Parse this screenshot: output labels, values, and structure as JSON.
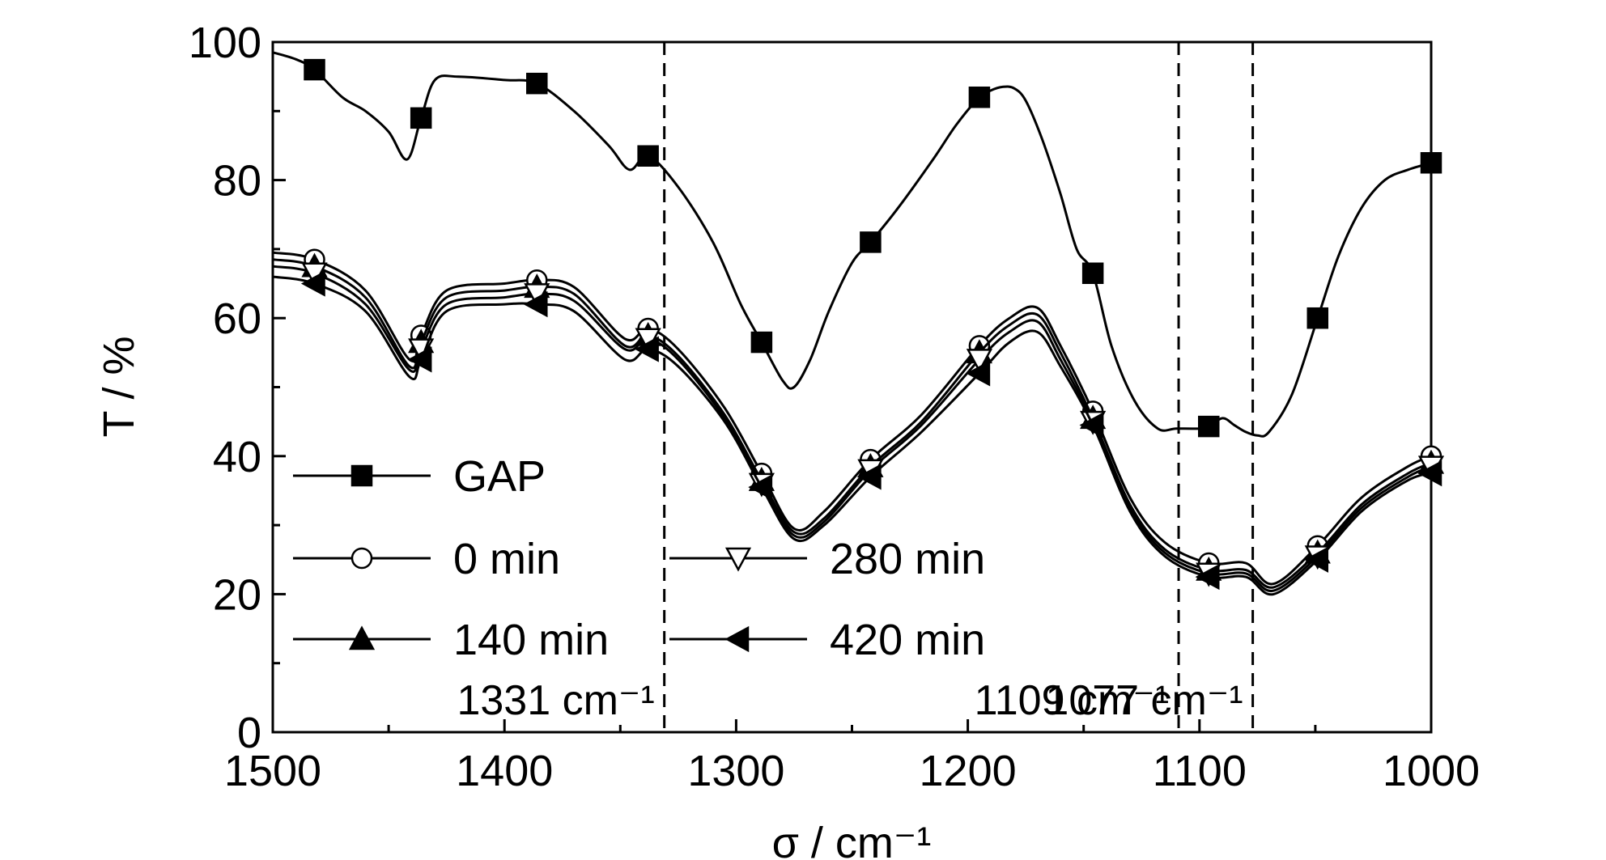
{
  "chart_data": {
    "type": "line",
    "title": "",
    "xlabel": "σ / cm⁻¹",
    "ylabel": "T / %",
    "xlim": [
      1500,
      1000
    ],
    "ylim": [
      0,
      100
    ],
    "x_reversed": true,
    "grid": false,
    "legend_position": "lower-left",
    "xticks": [
      "1500",
      "1400",
      "1300",
      "1200",
      "1100",
      "1000"
    ],
    "yticks": [
      "0",
      "20",
      "40",
      "60",
      "80",
      "100"
    ],
    "annotations": [
      {
        "text": "1331 cm⁻¹",
        "x": 1331
      },
      {
        "text": "1109 cm⁻¹",
        "x": 1109
      },
      {
        "text": "1077 cm⁻¹",
        "x": 1077
      }
    ],
    "series": [
      {
        "name": "GAP",
        "marker": "square-filled",
        "x": [
          1500,
          1490,
          1482,
          1470,
          1460,
          1450,
          1442,
          1436,
          1430,
          1420,
          1400,
          1386,
          1370,
          1355,
          1346,
          1338,
          1325,
          1310,
          1298,
          1289,
          1280,
          1275,
          1268,
          1260,
          1250,
          1242,
          1230,
          1215,
          1205,
          1195,
          1190,
          1185,
          1180,
          1175,
          1168,
          1160,
          1153,
          1146,
          1138,
          1128,
          1118,
          1110,
          1100,
          1096,
          1090,
          1085,
          1080,
          1075,
          1070,
          1060,
          1049,
          1040,
          1030,
          1020,
          1010,
          1000
        ],
        "y": [
          98.5,
          97.5,
          96,
          92,
          90,
          87,
          83,
          89,
          94.5,
          95,
          94.5,
          94,
          90,
          85,
          81.5,
          83.5,
          79,
          71,
          62,
          56.5,
          51,
          50,
          54,
          61,
          68,
          71,
          76,
          83,
          88,
          92,
          93,
          93.5,
          93.3,
          91.5,
          86,
          78,
          70,
          66.5,
          56,
          48,
          44,
          44,
          44,
          44.3,
          45.5,
          44.5,
          43.5,
          43,
          43.5,
          49,
          60,
          69,
          76,
          80,
          81.5,
          82.5
        ],
        "markers_x": [
          1482,
          1436,
          1386,
          1338,
          1289,
          1242,
          1195,
          1146,
          1096,
          1049,
          1000
        ],
        "markers_y": [
          96,
          89,
          94,
          83.5,
          56.5,
          71,
          92,
          66.5,
          44.3,
          60,
          82.5
        ]
      },
      {
        "name": "0 min",
        "marker": "circle-open",
        "x": [
          1500,
          1482,
          1460,
          1441,
          1436,
          1425,
          1400,
          1386,
          1370,
          1348,
          1338,
          1325,
          1305,
          1289,
          1275,
          1262,
          1242,
          1220,
          1195,
          1182,
          1170,
          1160,
          1146,
          1130,
          1115,
          1096,
          1080,
          1068,
          1049,
          1030,
          1010,
          1000
        ],
        "y": [
          69.5,
          68.5,
          64,
          54,
          57.5,
          64,
          65,
          65.5,
          64.5,
          57,
          58.5,
          55.5,
          47,
          37.5,
          29.5,
          32,
          39.5,
          46,
          56,
          60,
          61.5,
          56,
          46.5,
          34,
          27.5,
          24.5,
          24.5,
          21.5,
          27,
          34,
          38.5,
          40
        ],
        "markers_x": [
          1482,
          1436,
          1386,
          1338,
          1289,
          1242,
          1195,
          1146,
          1096,
          1049,
          1000
        ],
        "markers_y": [
          68.5,
          57.5,
          65.5,
          58.5,
          37.5,
          39.5,
          56,
          46.5,
          24.5,
          27,
          40
        ]
      },
      {
        "name": "140 min",
        "marker": "triangle-up-filled",
        "x": [
          1500,
          1482,
          1460,
          1441,
          1436,
          1425,
          1400,
          1386,
          1370,
          1348,
          1338,
          1325,
          1305,
          1289,
          1275,
          1262,
          1242,
          1220,
          1195,
          1182,
          1170,
          1160,
          1146,
          1130,
          1115,
          1096,
          1080,
          1068,
          1049,
          1030,
          1010,
          1000
        ],
        "y": [
          68.5,
          67.5,
          63,
          53,
          56.5,
          63,
          64,
          64.5,
          63.5,
          56,
          57.5,
          54.5,
          46,
          36.5,
          29,
          31,
          38.5,
          45,
          55,
          59,
          60.5,
          55,
          45.5,
          33,
          26.5,
          23.5,
          23.5,
          21,
          26,
          33,
          37.5,
          39
        ],
        "markers_x": [
          1482,
          1436,
          1386,
          1338,
          1289,
          1242,
          1195,
          1146,
          1096,
          1049,
          1000
        ],
        "markers_y": [
          67.5,
          56.5,
          64.5,
          57.5,
          36.5,
          38.5,
          55,
          45.5,
          23.5,
          26,
          39
        ]
      },
      {
        "name": "280 min",
        "marker": "triangle-down-open",
        "x": [
          1500,
          1482,
          1460,
          1441,
          1436,
          1425,
          1400,
          1386,
          1370,
          1348,
          1338,
          1325,
          1305,
          1289,
          1275,
          1262,
          1242,
          1220,
          1195,
          1182,
          1170,
          1160,
          1146,
          1130,
          1115,
          1096,
          1080,
          1068,
          1049,
          1030,
          1010,
          1000
        ],
        "y": [
          67.5,
          66.5,
          62,
          52.5,
          55.5,
          62,
          63,
          63.5,
          62.5,
          55.5,
          57,
          54,
          45.5,
          36,
          28.5,
          30.5,
          38,
          44.5,
          54,
          58,
          59.5,
          54,
          45,
          32.5,
          26,
          23,
          23,
          20.5,
          25.5,
          32.5,
          37,
          38.5
        ],
        "markers_x": [
          1482,
          1436,
          1386,
          1338,
          1289,
          1242,
          1195,
          1146,
          1096,
          1049,
          1000
        ],
        "markers_y": [
          66.5,
          55.5,
          63.5,
          57,
          36,
          38,
          54,
          45,
          23,
          25.5,
          38.5
        ]
      },
      {
        "name": "420 min",
        "marker": "triangle-left-filled",
        "x": [
          1500,
          1482,
          1460,
          1441,
          1436,
          1425,
          1400,
          1386,
          1370,
          1348,
          1338,
          1325,
          1305,
          1289,
          1275,
          1262,
          1242,
          1220,
          1195,
          1182,
          1170,
          1160,
          1146,
          1130,
          1115,
          1096,
          1080,
          1068,
          1049,
          1030,
          1010,
          1000
        ],
        "y": [
          66,
          65,
          61,
          51.5,
          54,
          61,
          62,
          62,
          61,
          54,
          55.5,
          53,
          45,
          35.5,
          28,
          30,
          37,
          43.5,
          52,
          56.5,
          58,
          53,
          44.5,
          32,
          25.5,
          22.5,
          22.5,
          20,
          25,
          32,
          36.5,
          37.5
        ],
        "markers_x": [
          1482,
          1436,
          1386,
          1338,
          1289,
          1242,
          1195,
          1146,
          1096,
          1049,
          1000
        ],
        "markers_y": [
          65,
          54,
          62,
          55.5,
          35.5,
          37,
          52,
          44.5,
          22.5,
          25,
          37.5
        ]
      }
    ]
  }
}
